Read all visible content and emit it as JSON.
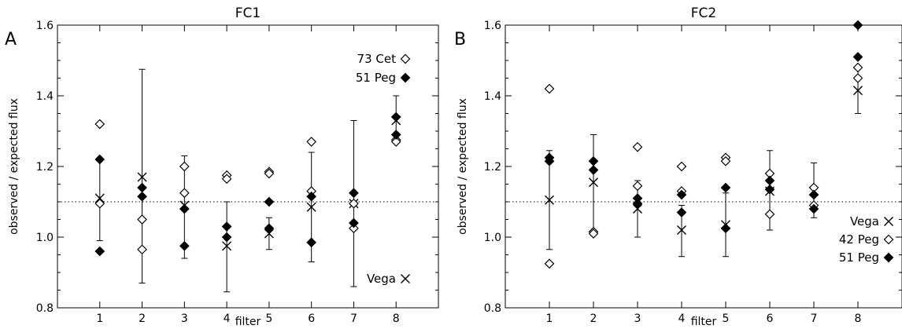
{
  "chart_data": [
    {
      "type": "scatter",
      "panel_label": "A",
      "title": "FC1",
      "xlabel": "filter",
      "ylabel": "observed / expected flux",
      "xlim": [
        0,
        9
      ],
      "ylim": [
        0.8,
        1.6
      ],
      "xticks": [
        "1",
        "2",
        "3",
        "4",
        "5",
        "6",
        "7",
        "8"
      ],
      "yticks": [
        "0.8",
        "1.0",
        "1.2",
        "1.4",
        "1.6"
      ],
      "reference_line": 1.1,
      "legend": "top-right",
      "legend_entries": [
        "73 Cet",
        "51 Peg"
      ],
      "legend2_entries": [
        "Vega"
      ],
      "series": [
        {
          "name": "Vega",
          "marker": "x",
          "points": [
            {
              "x": 1,
              "y": 1.11,
              "err_low": 0.99,
              "err_high": 1.22
            },
            {
              "x": 2,
              "y": 1.17,
              "err_low": 0.87,
              "err_high": 1.475
            },
            {
              "x": 3,
              "y": 1.09,
              "err_low": 0.94,
              "err_high": 1.23
            },
            {
              "x": 4,
              "y": 0.975,
              "err_low": 0.845,
              "err_high": 1.1
            },
            {
              "x": 5,
              "y": 1.01,
              "err_low": 0.965,
              "err_high": 1.055
            },
            {
              "x": 6,
              "y": 1.085,
              "err_low": 0.93,
              "err_high": 1.24
            },
            {
              "x": 7,
              "y": 1.095,
              "err_low": 0.86,
              "err_high": 1.33
            },
            {
              "x": 8,
              "y": 1.33,
              "err_low": 1.28,
              "err_high": 1.4
            }
          ]
        },
        {
          "name": "73 Cet",
          "marker": "diamond-open",
          "points": [
            {
              "x": 1,
              "y": 1.32
            },
            {
              "x": 1,
              "y": 1.095
            },
            {
              "x": 2,
              "y": 1.05
            },
            {
              "x": 2,
              "y": 0.965
            },
            {
              "x": 3,
              "y": 1.2
            },
            {
              "x": 3,
              "y": 1.125
            },
            {
              "x": 4,
              "y": 1.175
            },
            {
              "x": 4,
              "y": 1.165
            },
            {
              "x": 5,
              "y": 1.185
            },
            {
              "x": 5,
              "y": 1.18
            },
            {
              "x": 6,
              "y": 1.27
            },
            {
              "x": 6,
              "y": 1.13
            },
            {
              "x": 7,
              "y": 1.095
            },
            {
              "x": 7,
              "y": 1.025
            },
            {
              "x": 8,
              "y": 1.275
            },
            {
              "x": 8,
              "y": 1.27
            }
          ]
        },
        {
          "name": "51 Peg",
          "marker": "diamond-filled",
          "points": [
            {
              "x": 1,
              "y": 1.22
            },
            {
              "x": 1,
              "y": 0.96
            },
            {
              "x": 2,
              "y": 1.14
            },
            {
              "x": 2,
              "y": 1.115
            },
            {
              "x": 3,
              "y": 1.08
            },
            {
              "x": 3,
              "y": 0.975
            },
            {
              "x": 4,
              "y": 1.03
            },
            {
              "x": 4,
              "y": 1.0
            },
            {
              "x": 5,
              "y": 1.1
            },
            {
              "x": 5,
              "y": 1.025
            },
            {
              "x": 6,
              "y": 1.115
            },
            {
              "x": 6,
              "y": 0.985
            },
            {
              "x": 7,
              "y": 1.125
            },
            {
              "x": 7,
              "y": 1.04
            },
            {
              "x": 8,
              "y": 1.34
            },
            {
              "x": 8,
              "y": 1.29
            }
          ]
        }
      ]
    },
    {
      "type": "scatter",
      "panel_label": "B",
      "title": "FC2",
      "xlabel": "filter",
      "ylabel": "observed / expected flux",
      "xlim": [
        0,
        9
      ],
      "ylim": [
        0.8,
        1.6
      ],
      "xticks": [
        "1",
        "2",
        "3",
        "4",
        "5",
        "6",
        "7",
        "8"
      ],
      "yticks": [
        "0.8",
        "1.0",
        "1.2",
        "1.4",
        "1.6"
      ],
      "reference_line": 1.1,
      "legend": "bottom-right",
      "legend_entries": [
        "Vega",
        "42 Peg",
        "51 Peg"
      ],
      "series": [
        {
          "name": "Vega",
          "marker": "x",
          "points": [
            {
              "x": 1,
              "y": 1.105,
              "err_low": 0.965,
              "err_high": 1.245
            },
            {
              "x": 2,
              "y": 1.155,
              "err_low": 1.02,
              "err_high": 1.29
            },
            {
              "x": 3,
              "y": 1.08,
              "err_low": 1.0,
              "err_high": 1.16
            },
            {
              "x": 4,
              "y": 1.02,
              "err_low": 0.945,
              "err_high": 1.09
            },
            {
              "x": 5,
              "y": 1.035,
              "err_low": 0.945,
              "err_high": 1.125
            },
            {
              "x": 6,
              "y": 1.13,
              "err_low": 1.02,
              "err_high": 1.245
            },
            {
              "x": 7,
              "y": 1.13,
              "err_low": 1.055,
              "err_high": 1.21
            },
            {
              "x": 8,
              "y": 1.415,
              "err_low": 1.35,
              "err_high": 1.48
            }
          ]
        },
        {
          "name": "42 Peg",
          "marker": "diamond-open",
          "points": [
            {
              "x": 1,
              "y": 1.42
            },
            {
              "x": 1,
              "y": 0.925
            },
            {
              "x": 2,
              "y": 1.015
            },
            {
              "x": 2,
              "y": 1.01
            },
            {
              "x": 3,
              "y": 1.255
            },
            {
              "x": 3,
              "y": 1.145
            },
            {
              "x": 4,
              "y": 1.2
            },
            {
              "x": 4,
              "y": 1.13
            },
            {
              "x": 5,
              "y": 1.225
            },
            {
              "x": 5,
              "y": 1.215
            },
            {
              "x": 6,
              "y": 1.18
            },
            {
              "x": 6,
              "y": 1.065
            },
            {
              "x": 7,
              "y": 1.14
            },
            {
              "x": 7,
              "y": 1.09
            },
            {
              "x": 8,
              "y": 1.48
            },
            {
              "x": 8,
              "y": 1.45
            }
          ]
        },
        {
          "name": "51 Peg",
          "marker": "diamond-filled",
          "points": [
            {
              "x": 1,
              "y": 1.225
            },
            {
              "x": 1,
              "y": 1.215
            },
            {
              "x": 2,
              "y": 1.215
            },
            {
              "x": 2,
              "y": 1.19
            },
            {
              "x": 3,
              "y": 1.11
            },
            {
              "x": 3,
              "y": 1.095
            },
            {
              "x": 4,
              "y": 1.12
            },
            {
              "x": 4,
              "y": 1.07
            },
            {
              "x": 5,
              "y": 1.14
            },
            {
              "x": 5,
              "y": 1.025
            },
            {
              "x": 6,
              "y": 1.16
            },
            {
              "x": 6,
              "y": 1.135
            },
            {
              "x": 7,
              "y": 1.12
            },
            {
              "x": 7,
              "y": 1.08
            },
            {
              "x": 8,
              "y": 1.6
            },
            {
              "x": 8,
              "y": 1.51
            }
          ]
        }
      ]
    }
  ]
}
